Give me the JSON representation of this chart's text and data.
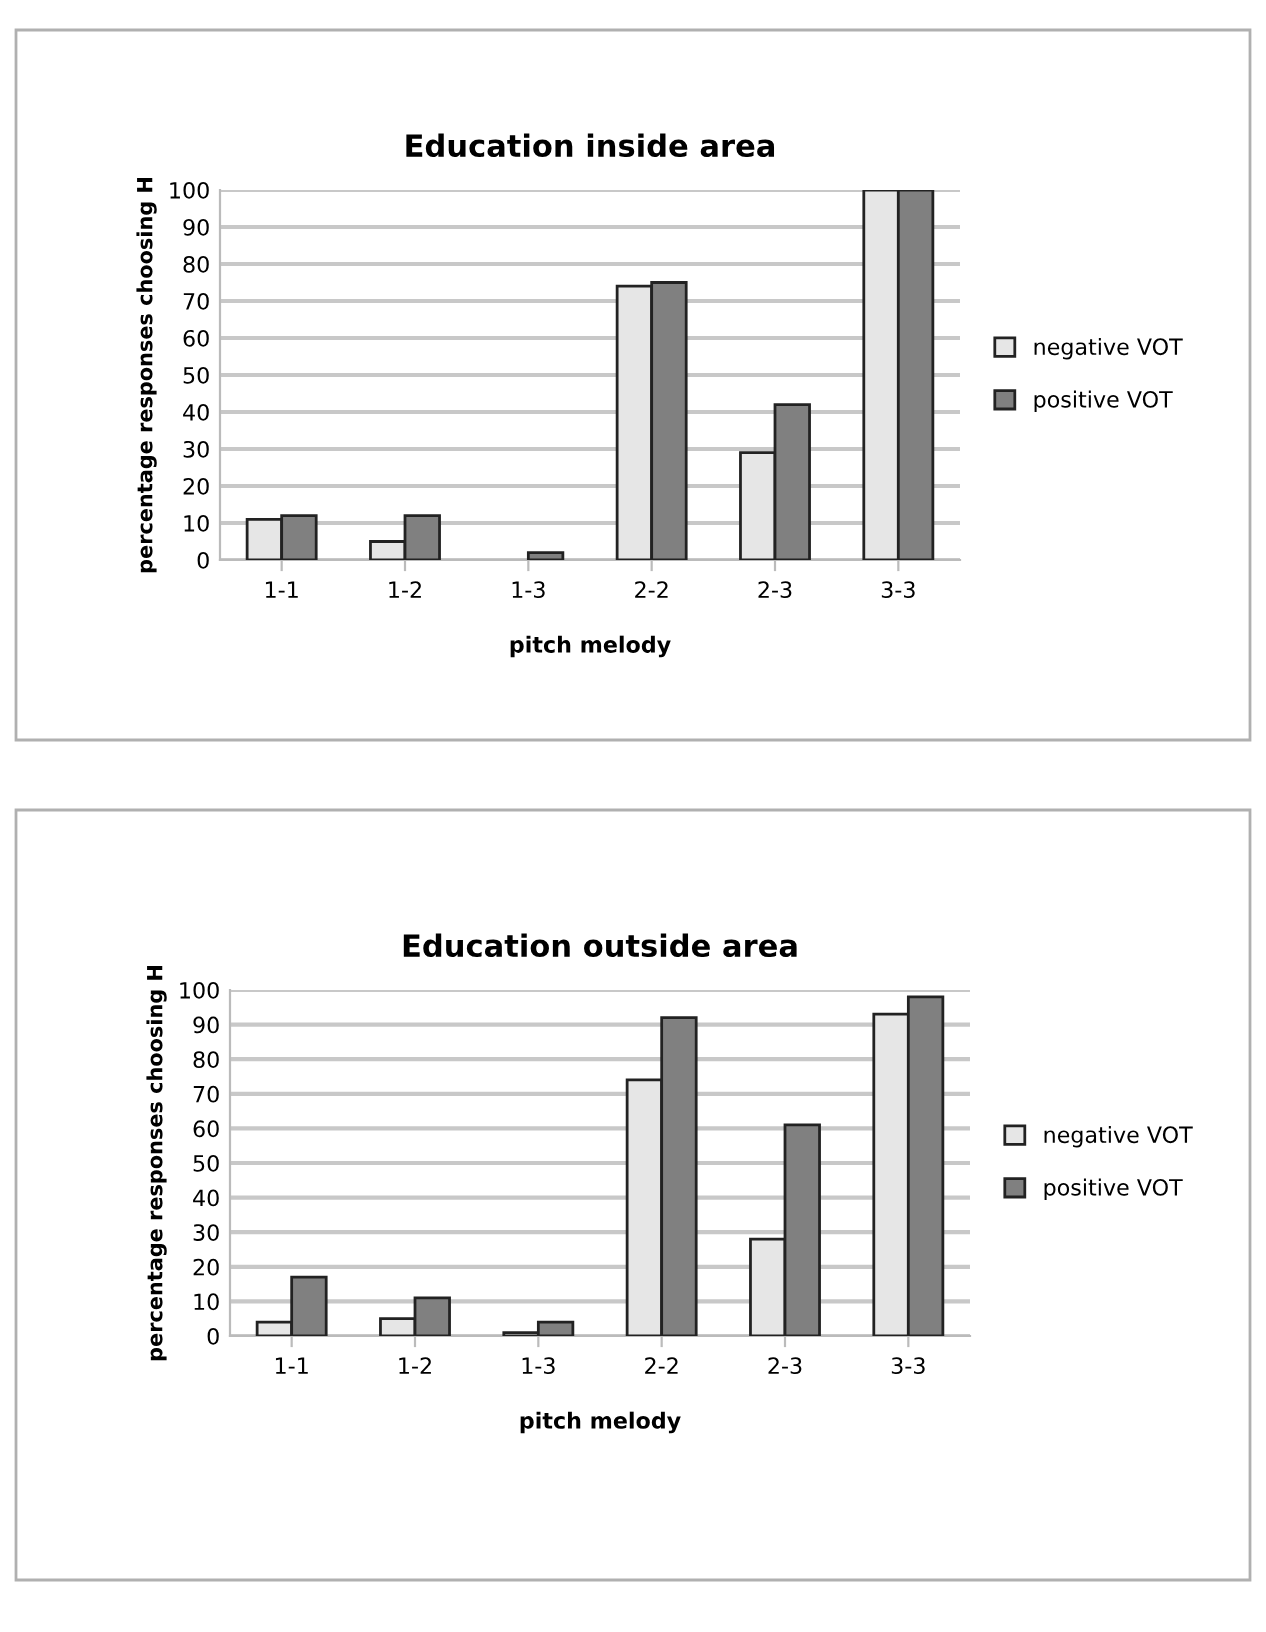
{
  "chart_data": [
    {
      "type": "bar",
      "title": "Education inside area",
      "xlabel": "pitch melody",
      "ylabel": "percentage responses choosing H",
      "categories": [
        "1-1",
        "1-2",
        "1-3",
        "2-2",
        "2-3",
        "3-3"
      ],
      "series": [
        {
          "name": "negative VOT",
          "color": "#e6e6e6",
          "values": [
            11,
            5,
            0,
            74,
            29,
            100
          ]
        },
        {
          "name": "positive VOT",
          "color": "#808080",
          "values": [
            12,
            12,
            2,
            75,
            42,
            100
          ]
        }
      ],
      "ylim": [
        0,
        100
      ],
      "yticks": [
        0,
        10,
        20,
        30,
        40,
        50,
        60,
        70,
        80,
        90,
        100
      ],
      "grid": "y",
      "legend": "right"
    },
    {
      "type": "bar",
      "title": "Education outside area",
      "xlabel": "pitch melody",
      "ylabel": "percentage responses choosing H",
      "categories": [
        "1-1",
        "1-2",
        "1-3",
        "2-2",
        "2-3",
        "3-3"
      ],
      "series": [
        {
          "name": "negative VOT",
          "color": "#e6e6e6",
          "values": [
            4,
            5,
            1,
            74,
            28,
            93
          ]
        },
        {
          "name": "positive VOT",
          "color": "#808080",
          "values": [
            17,
            11,
            4,
            92,
            61,
            98
          ]
        }
      ],
      "ylim": [
        0,
        100
      ],
      "yticks": [
        0,
        10,
        20,
        30,
        40,
        50,
        60,
        70,
        80,
        90,
        100
      ],
      "grid": "y",
      "legend": "right"
    }
  ]
}
